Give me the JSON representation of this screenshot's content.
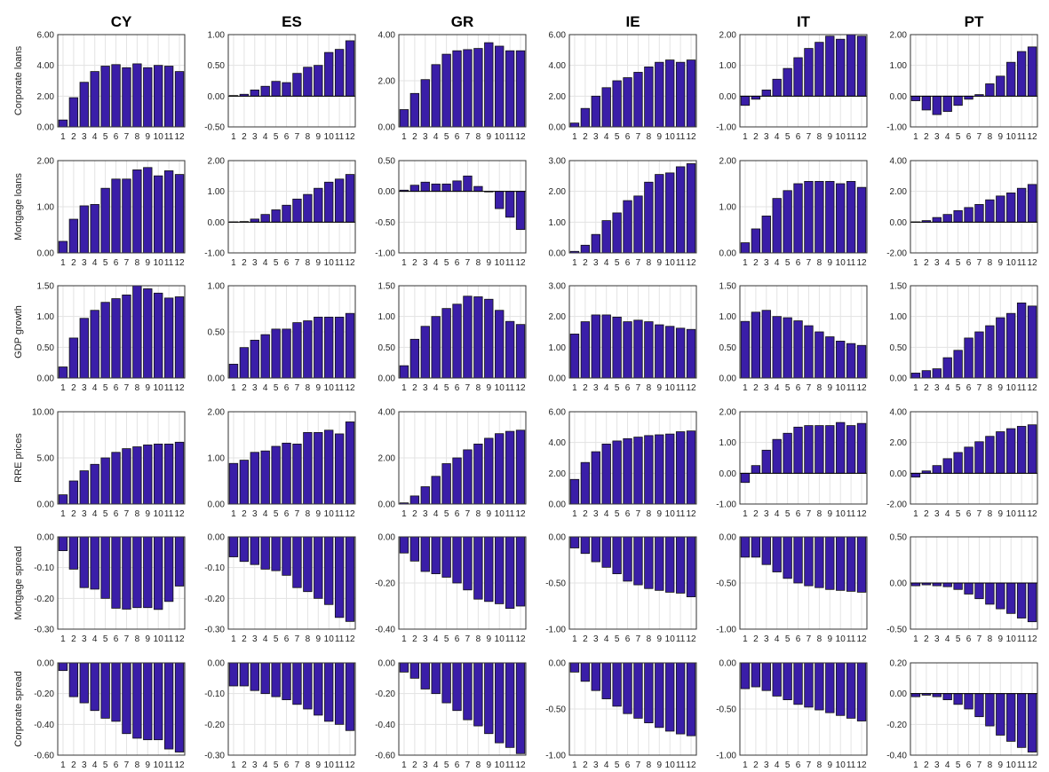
{
  "countries": [
    "CY",
    "ES",
    "GR",
    "IE",
    "IT",
    "PT"
  ],
  "variables": [
    "Corporate loans",
    "Mortgage loans",
    "GDP growth",
    "RRE prices",
    "Mortgage spread",
    "Corporate spread"
  ],
  "x_ticks": [
    "1",
    "2",
    "3",
    "4",
    "5",
    "6",
    "7",
    "8",
    "9",
    "10",
    "11",
    "12"
  ],
  "colors": {
    "bar": "#3a1ea8",
    "bar_edge": "#111111",
    "grid": "#e3e3e3"
  },
  "chart_data": [
    {
      "type": "bar",
      "row_label": "Corporate loans",
      "title": "CY",
      "ylim": [
        0,
        6
      ],
      "yticks": [
        "0.00",
        "2.00",
        "4.00",
        "6.00"
      ],
      "values": [
        0.45,
        1.9,
        2.9,
        3.6,
        3.95,
        4.05,
        3.85,
        4.1,
        3.85,
        4.0,
        3.95,
        3.6
      ]
    },
    {
      "type": "bar",
      "title": "ES",
      "ylim": [
        -0.5,
        1.0
      ],
      "yticks": [
        "-0.50",
        "0.00",
        "0.50",
        "1.00"
      ],
      "values": [
        0.01,
        0.03,
        0.1,
        0.16,
        0.24,
        0.22,
        0.37,
        0.47,
        0.5,
        0.71,
        0.76,
        0.9
      ]
    },
    {
      "type": "bar",
      "title": "GR",
      "ylim": [
        0,
        4
      ],
      "yticks": [
        "0.00",
        "2.00",
        "4.00"
      ],
      "values": [
        0.75,
        1.45,
        2.05,
        2.7,
        3.15,
        3.3,
        3.35,
        3.4,
        3.65,
        3.5,
        3.3,
        3.3
      ]
    },
    {
      "type": "bar",
      "title": "IE",
      "ylim": [
        0,
        6
      ],
      "yticks": [
        "0.00",
        "2.00",
        "4.00",
        "6.00"
      ],
      "values": [
        0.25,
        1.2,
        2.0,
        2.55,
        3.0,
        3.2,
        3.55,
        3.9,
        4.2,
        4.35,
        4.2,
        4.35
      ]
    },
    {
      "type": "bar",
      "title": "IT",
      "ylim": [
        -1,
        2
      ],
      "yticks": [
        "-1.00",
        "0.00",
        "1.00",
        "2.00"
      ],
      "values": [
        -0.3,
        -0.1,
        0.2,
        0.55,
        0.9,
        1.25,
        1.55,
        1.75,
        1.95,
        1.85,
        2.0,
        1.95
      ]
    },
    {
      "type": "bar",
      "title": "PT",
      "ylim": [
        -1,
        2
      ],
      "yticks": [
        "-1.00",
        "0.00",
        "1.00",
        "2.00"
      ],
      "values": [
        -0.15,
        -0.45,
        -0.6,
        -0.5,
        -0.3,
        -0.1,
        0.05,
        0.4,
        0.65,
        1.1,
        1.45,
        1.6
      ]
    },
    {
      "type": "bar",
      "row_label": "Mortgage loans",
      "title": "",
      "ylim": [
        0,
        2
      ],
      "yticks": [
        "0.00",
        "1.00",
        "2.00"
      ],
      "values": [
        0.25,
        0.73,
        1.02,
        1.05,
        1.4,
        1.6,
        1.6,
        1.8,
        1.85,
        1.67,
        1.78,
        1.7
      ]
    },
    {
      "type": "bar",
      "title": "",
      "ylim": [
        -1,
        2
      ],
      "yticks": [
        "-1.00",
        "0.00",
        "1.00",
        "2.00"
      ],
      "values": [
        0.01,
        0.02,
        0.1,
        0.25,
        0.4,
        0.55,
        0.75,
        0.9,
        1.1,
        1.3,
        1.4,
        1.55
      ]
    },
    {
      "type": "bar",
      "title": "",
      "ylim": [
        -1,
        0.5
      ],
      "yticks": [
        "-1.00",
        "-0.50",
        "0.00",
        "0.50"
      ],
      "values": [
        0.02,
        0.1,
        0.15,
        0.12,
        0.12,
        0.17,
        0.25,
        0.08,
        0.0,
        -0.28,
        -0.42,
        -0.62
      ]
    },
    {
      "type": "bar",
      "title": "",
      "ylim": [
        0,
        3
      ],
      "yticks": [
        "0.00",
        "1.00",
        "2.00",
        "3.00"
      ],
      "values": [
        0.05,
        0.25,
        0.6,
        1.05,
        1.3,
        1.7,
        1.85,
        2.3,
        2.55,
        2.6,
        2.8,
        2.9
      ]
    },
    {
      "type": "bar",
      "title": "",
      "ylim": [
        0,
        2
      ],
      "yticks": [
        "0.00",
        "1.00",
        "2.00"
      ],
      "values": [
        0.22,
        0.52,
        0.8,
        1.18,
        1.35,
        1.5,
        1.55,
        1.55,
        1.55,
        1.5,
        1.55,
        1.42
      ]
    },
    {
      "type": "bar",
      "title": "",
      "ylim": [
        -2,
        4
      ],
      "yticks": [
        "-2.00",
        "0.00",
        "2.00",
        "4.00"
      ],
      "values": [
        0.02,
        0.1,
        0.3,
        0.5,
        0.75,
        0.95,
        1.15,
        1.45,
        1.7,
        1.9,
        2.2,
        2.45
      ]
    },
    {
      "type": "bar",
      "row_label": "GDP growth",
      "title": "",
      "ylim": [
        0,
        1.5
      ],
      "yticks": [
        "0.00",
        "0.50",
        "1.00",
        "1.50"
      ],
      "values": [
        0.18,
        0.65,
        0.97,
        1.1,
        1.23,
        1.29,
        1.35,
        1.5,
        1.45,
        1.38,
        1.3,
        1.32
      ]
    },
    {
      "type": "bar",
      "title": "",
      "ylim": [
        0,
        1.0
      ],
      "yticks": [
        "0.00",
        "0.50",
        "1.00"
      ],
      "values": [
        0.15,
        0.33,
        0.41,
        0.47,
        0.53,
        0.53,
        0.6,
        0.62,
        0.66,
        0.66,
        0.66,
        0.7
      ]
    },
    {
      "type": "bar",
      "title": "",
      "ylim": [
        0,
        1.5
      ],
      "yticks": [
        "0.00",
        "0.50",
        "1.00",
        "1.50"
      ],
      "values": [
        0.2,
        0.63,
        0.84,
        1.0,
        1.13,
        1.2,
        1.33,
        1.32,
        1.28,
        1.1,
        0.92,
        0.87
      ]
    },
    {
      "type": "bar",
      "title": "",
      "ylim": [
        0,
        3
      ],
      "yticks": [
        "0.00",
        "1.00",
        "2.00",
        "3.00"
      ],
      "values": [
        1.43,
        1.83,
        2.05,
        2.05,
        1.98,
        1.83,
        1.88,
        1.83,
        1.73,
        1.68,
        1.62,
        1.58
      ]
    },
    {
      "type": "bar",
      "title": "",
      "ylim": [
        0,
        1.5
      ],
      "yticks": [
        "0.00",
        "0.50",
        "1.00",
        "1.50"
      ],
      "values": [
        0.92,
        1.07,
        1.1,
        1.0,
        0.98,
        0.93,
        0.85,
        0.75,
        0.67,
        0.6,
        0.56,
        0.53
      ]
    },
    {
      "type": "bar",
      "title": "",
      "ylim": [
        0,
        1.5
      ],
      "yticks": [
        "0.00",
        "0.50",
        "1.00",
        "1.50"
      ],
      "values": [
        0.08,
        0.12,
        0.15,
        0.33,
        0.45,
        0.65,
        0.75,
        0.85,
        0.98,
        1.05,
        1.22,
        1.17
      ]
    },
    {
      "type": "bar",
      "row_label": "RRE prices",
      "title": "",
      "ylim": [
        0,
        10
      ],
      "yticks": [
        "0.00",
        "5.00",
        "10.00"
      ],
      "values": [
        1.0,
        2.5,
        3.6,
        4.3,
        5.0,
        5.6,
        6.0,
        6.2,
        6.4,
        6.5,
        6.5,
        6.7
      ]
    },
    {
      "type": "bar",
      "title": "",
      "ylim": [
        0,
        2
      ],
      "yticks": [
        "0.00",
        "1.00",
        "2.00"
      ],
      "values": [
        0.88,
        0.95,
        1.12,
        1.15,
        1.25,
        1.32,
        1.3,
        1.55,
        1.55,
        1.6,
        1.52,
        1.78
      ]
    },
    {
      "type": "bar",
      "title": "",
      "ylim": [
        0,
        4
      ],
      "yticks": [
        "0.00",
        "2.00",
        "4.00"
      ],
      "values": [
        0.05,
        0.35,
        0.75,
        1.2,
        1.75,
        2.0,
        2.35,
        2.6,
        2.85,
        3.05,
        3.15,
        3.2
      ]
    },
    {
      "type": "bar",
      "title": "",
      "ylim": [
        0,
        6
      ],
      "yticks": [
        "0.00",
        "2.00",
        "4.00",
        "6.00"
      ],
      "values": [
        1.6,
        2.7,
        3.4,
        3.9,
        4.1,
        4.25,
        4.35,
        4.45,
        4.5,
        4.55,
        4.7,
        4.75
      ]
    },
    {
      "type": "bar",
      "title": "",
      "ylim": [
        -1,
        2
      ],
      "yticks": [
        "-1.00",
        "0.00",
        "1.00",
        "2.00"
      ],
      "values": [
        -0.3,
        0.25,
        0.75,
        1.1,
        1.3,
        1.5,
        1.55,
        1.55,
        1.55,
        1.65,
        1.55,
        1.62
      ]
    },
    {
      "type": "bar",
      "title": "",
      "ylim": [
        -2,
        4
      ],
      "yticks": [
        "-2.00",
        "0.00",
        "2.00",
        "4.00"
      ],
      "values": [
        -0.25,
        0.15,
        0.5,
        0.95,
        1.35,
        1.7,
        2.05,
        2.4,
        2.7,
        2.9,
        3.05,
        3.15
      ]
    },
    {
      "type": "bar",
      "row_label": "Mortgage spread",
      "title": "",
      "ylim": [
        -0.3,
        0.0
      ],
      "yticks": [
        "-0.30",
        "-0.20",
        "-0.10",
        "0.00"
      ],
      "values": [
        -0.045,
        -0.105,
        -0.165,
        -0.17,
        -0.2,
        -0.232,
        -0.235,
        -0.23,
        -0.23,
        -0.236,
        -0.21,
        -0.16
      ]
    },
    {
      "type": "bar",
      "title": "",
      "ylim": [
        -0.3,
        0.0
      ],
      "yticks": [
        "-0.30",
        "-0.20",
        "-0.10",
        "0.00"
      ],
      "values": [
        -0.065,
        -0.08,
        -0.09,
        -0.105,
        -0.11,
        -0.125,
        -0.165,
        -0.178,
        -0.2,
        -0.22,
        -0.262,
        -0.275
      ]
    },
    {
      "type": "bar",
      "title": "",
      "ylim": [
        -0.4,
        0.0
      ],
      "yticks": [
        "-0.40",
        "-0.20",
        "0.00"
      ],
      "values": [
        -0.07,
        -0.105,
        -0.15,
        -0.16,
        -0.175,
        -0.2,
        -0.23,
        -0.27,
        -0.28,
        -0.29,
        -0.31,
        -0.3
      ]
    },
    {
      "type": "bar",
      "title": "",
      "ylim": [
        -1.0,
        0.0
      ],
      "yticks": [
        "-1.00",
        "-0.50",
        "0.00"
      ],
      "values": [
        -0.12,
        -0.18,
        -0.27,
        -0.33,
        -0.4,
        -0.48,
        -0.52,
        -0.56,
        -0.58,
        -0.6,
        -0.61,
        -0.65
      ]
    },
    {
      "type": "bar",
      "title": "",
      "ylim": [
        -1.0,
        0.0
      ],
      "yticks": [
        "-1.00",
        "-0.50",
        "0.00"
      ],
      "values": [
        -0.22,
        -0.22,
        -0.3,
        -0.38,
        -0.45,
        -0.5,
        -0.53,
        -0.55,
        -0.57,
        -0.58,
        -0.59,
        -0.6
      ]
    },
    {
      "type": "bar",
      "title": "",
      "ylim": [
        -0.5,
        0.5
      ],
      "yticks": [
        "-0.50",
        "0.00",
        "0.50"
      ],
      "values": [
        -0.03,
        -0.02,
        -0.03,
        -0.04,
        -0.07,
        -0.12,
        -0.17,
        -0.23,
        -0.28,
        -0.33,
        -0.38,
        -0.42
      ]
    },
    {
      "type": "bar",
      "row_label": "Corporate spread",
      "title": "",
      "ylim": [
        -0.6,
        0.0
      ],
      "yticks": [
        "-0.60",
        "-0.40",
        "-0.20",
        "0.00"
      ],
      "values": [
        -0.05,
        -0.22,
        -0.26,
        -0.31,
        -0.36,
        -0.38,
        -0.46,
        -0.49,
        -0.5,
        -0.5,
        -0.56,
        -0.58
      ]
    },
    {
      "type": "bar",
      "title": "",
      "ylim": [
        -0.3,
        0.0
      ],
      "yticks": [
        "-0.30",
        "-0.20",
        "-0.10",
        "0.00"
      ],
      "values": [
        -0.075,
        -0.075,
        -0.09,
        -0.1,
        -0.11,
        -0.12,
        -0.135,
        -0.15,
        -0.17,
        -0.19,
        -0.2,
        -0.22
      ]
    },
    {
      "type": "bar",
      "title": "",
      "ylim": [
        -0.6,
        0.0
      ],
      "yticks": [
        "-0.60",
        "-0.40",
        "-0.20",
        "0.00"
      ],
      "values": [
        -0.06,
        -0.1,
        -0.17,
        -0.2,
        -0.26,
        -0.31,
        -0.37,
        -0.41,
        -0.46,
        -0.52,
        -0.55,
        -0.59
      ]
    },
    {
      "type": "bar",
      "title": "",
      "ylim": [
        -1.0,
        0.0
      ],
      "yticks": [
        "-1.00",
        "-0.50",
        "0.00"
      ],
      "values": [
        -0.1,
        -0.2,
        -0.3,
        -0.39,
        -0.47,
        -0.55,
        -0.6,
        -0.65,
        -0.7,
        -0.74,
        -0.77,
        -0.79
      ]
    },
    {
      "type": "bar",
      "title": "",
      "ylim": [
        -1.0,
        0.0
      ],
      "yticks": [
        "-1.00",
        "-0.50",
        "0.00"
      ],
      "values": [
        -0.28,
        -0.26,
        -0.3,
        -0.36,
        -0.4,
        -0.45,
        -0.48,
        -0.51,
        -0.54,
        -0.57,
        -0.6,
        -0.63
      ]
    },
    {
      "type": "bar",
      "title": "",
      "ylim": [
        -0.4,
        0.2
      ],
      "yticks": [
        "-0.40",
        "-0.20",
        "0.00",
        "0.20"
      ],
      "values": [
        -0.02,
        -0.01,
        -0.02,
        -0.04,
        -0.07,
        -0.1,
        -0.15,
        -0.21,
        -0.27,
        -0.31,
        -0.35,
        -0.38
      ]
    }
  ]
}
